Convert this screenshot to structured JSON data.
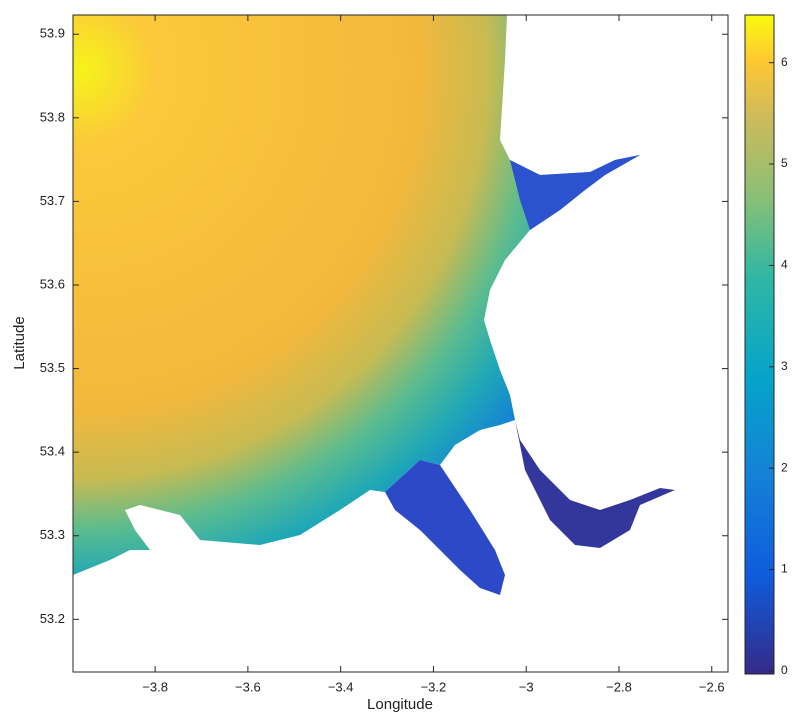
{
  "chart_data": {
    "type": "map",
    "xlabel": "Longitude",
    "ylabel": "Latitude",
    "xlim": [
      -3.977,
      -2.565
    ],
    "ylim": [
      53.137,
      53.923
    ],
    "xticks": [
      {
        "value": -3.8,
        "label": "−3.8"
      },
      {
        "value": -3.6,
        "label": "−3.6"
      },
      {
        "value": -3.4,
        "label": "−3.4"
      },
      {
        "value": -3.2,
        "label": "−3.2"
      },
      {
        "value": -3,
        "label": "−3"
      },
      {
        "value": -2.8,
        "label": "−2.8"
      },
      {
        "value": -2.6,
        "label": "−2.6"
      }
    ],
    "yticks": [
      53.2,
      53.3,
      53.4,
      53.5,
      53.6,
      53.7,
      53.8,
      53.9
    ],
    "colorbar": {
      "clim": [
        -0.03,
        6.47
      ],
      "ticks": [
        0,
        1,
        2,
        3,
        4,
        5,
        6
      ]
    }
  }
}
